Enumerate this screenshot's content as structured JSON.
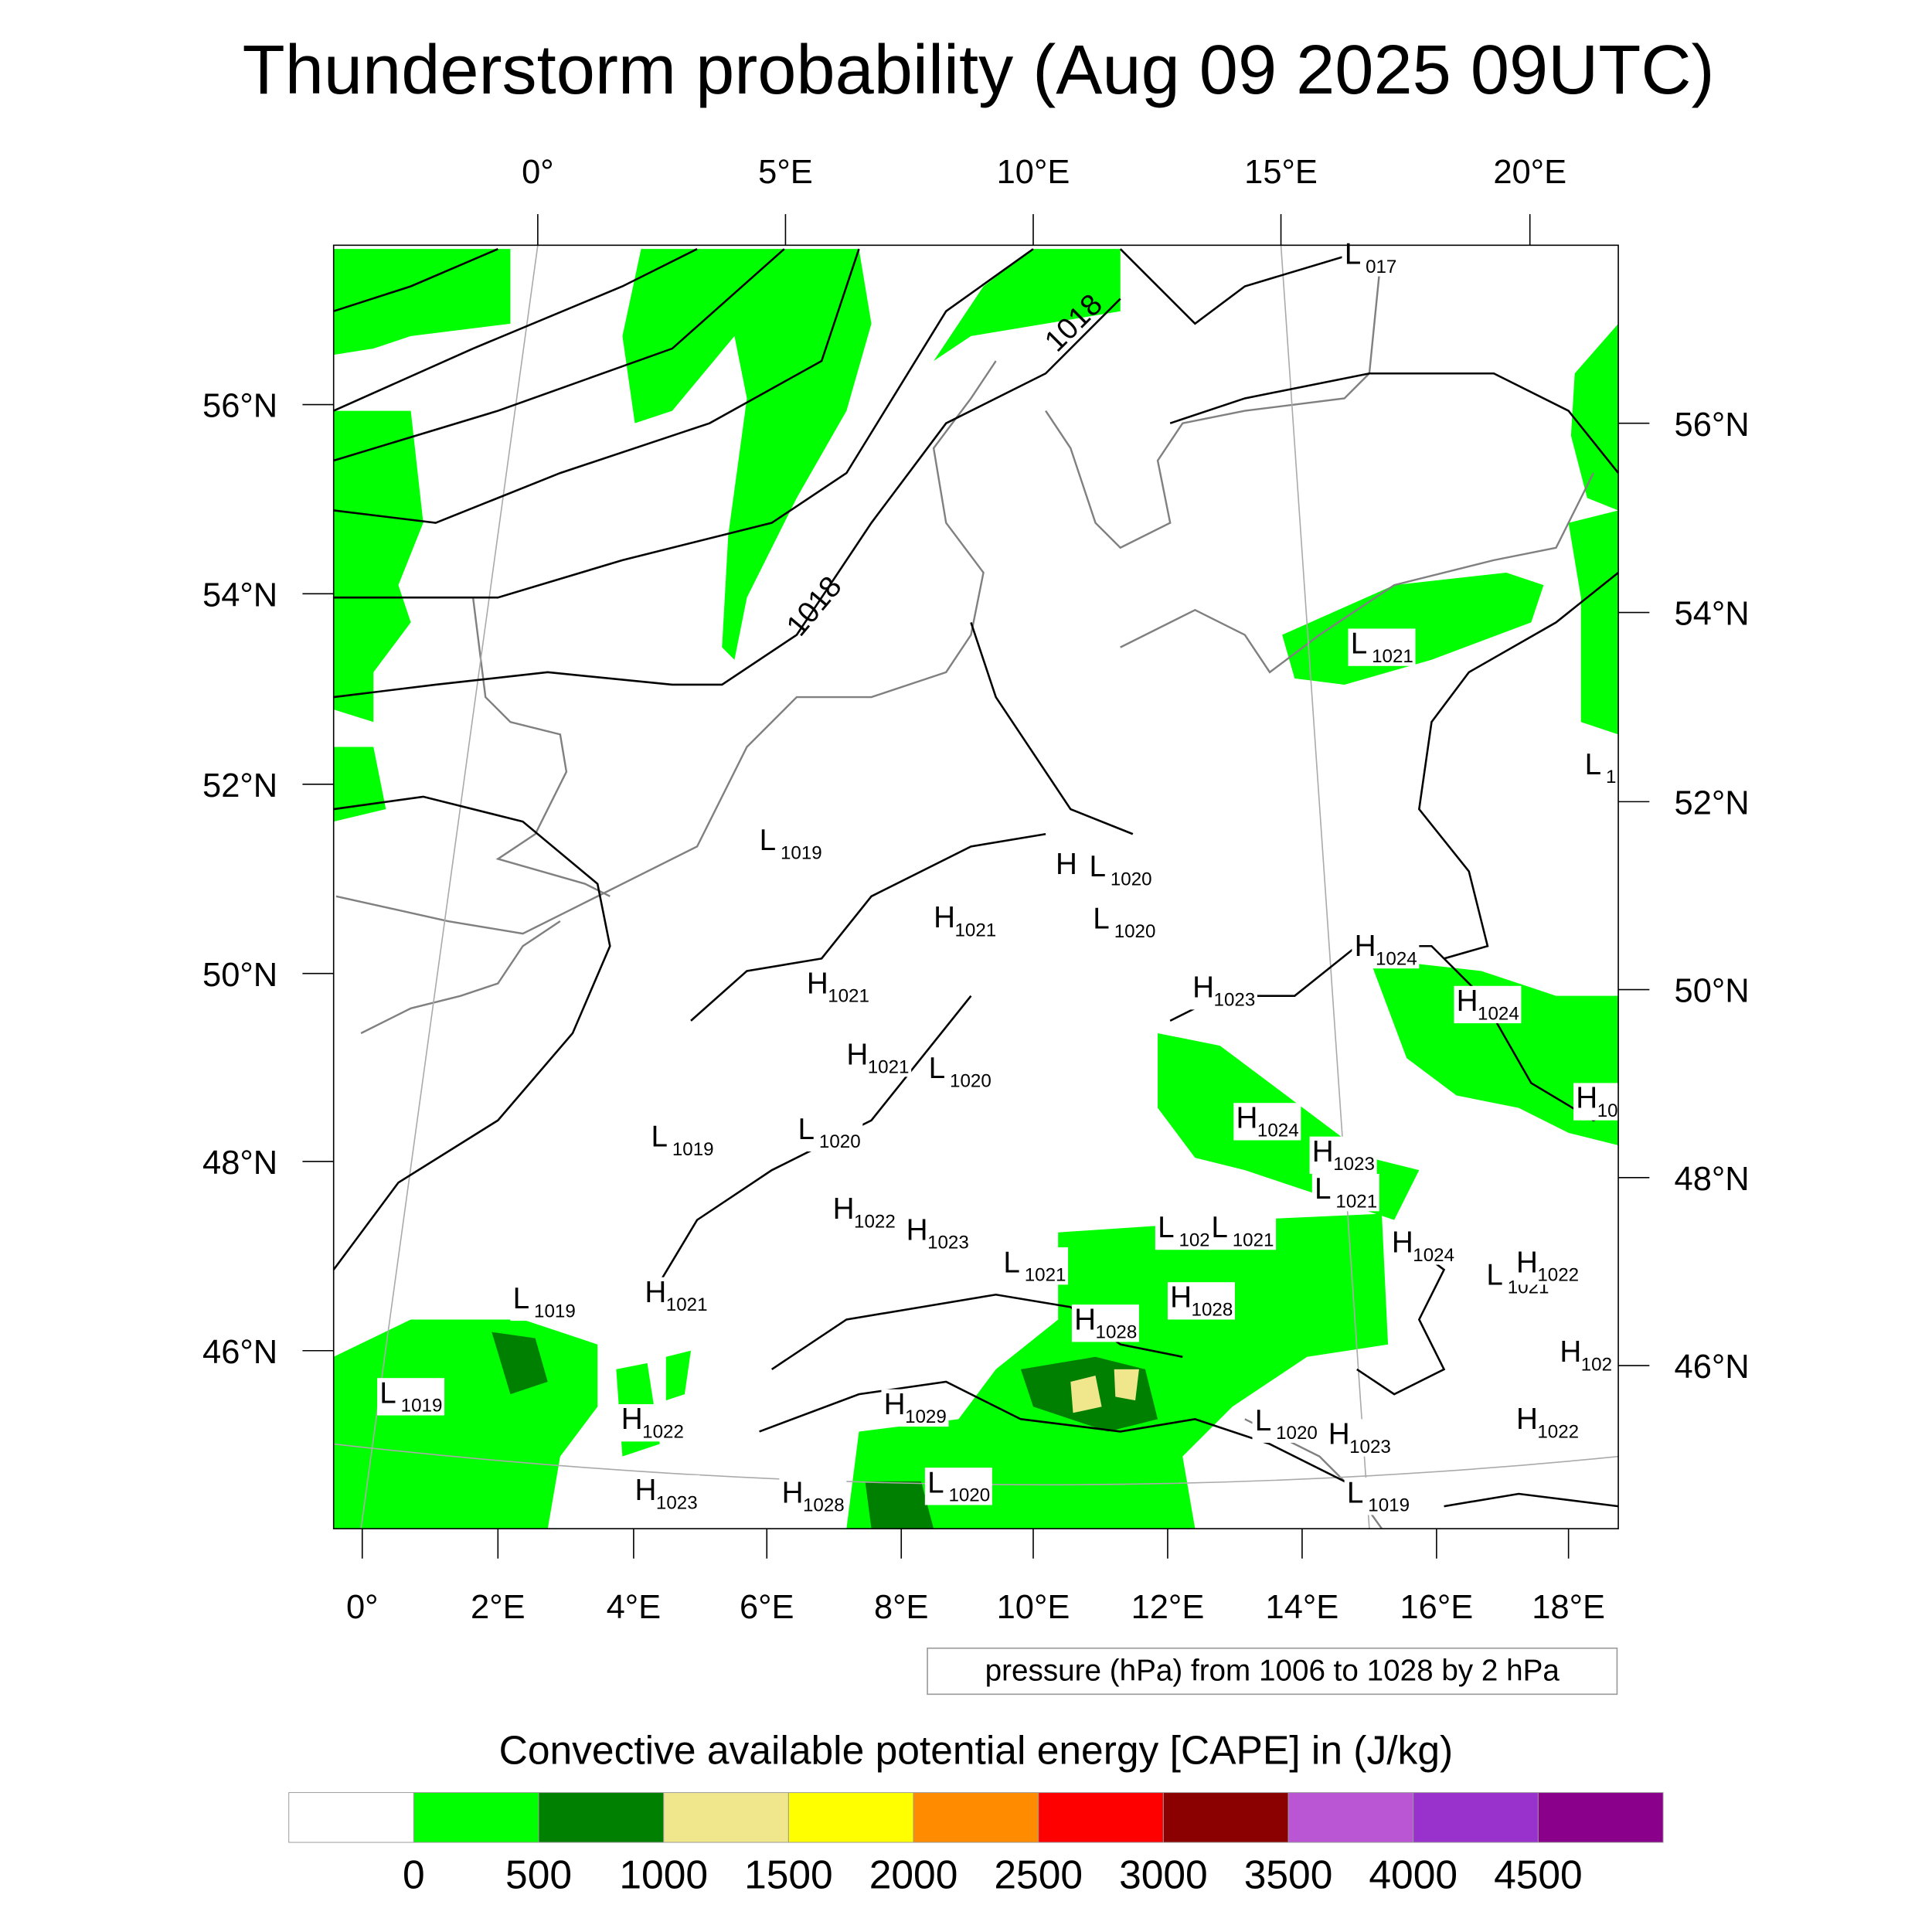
{
  "title": "Thunderstorm probability (Aug 09 2025 09UTC)",
  "chart_data": {
    "type": "heatmap",
    "title": "Thunderstorm probability (Aug 09 2025 09UTC)",
    "top_lon_labels": [
      "0°",
      "5°E",
      "10°E",
      "15°E",
      "20°E"
    ],
    "bottom_lon_labels": [
      "0°",
      "2°E",
      "4°E",
      "6°E",
      "8°E",
      "10°E",
      "12°E",
      "14°E",
      "16°E",
      "18°E"
    ],
    "left_lat_labels": [
      "56°N",
      "54°N",
      "52°N",
      "50°N",
      "48°N",
      "46°N"
    ],
    "right_lat_labels": [
      "56°N",
      "54°N",
      "52°N",
      "50°N",
      "48°N",
      "46°N"
    ],
    "contour_info": "pressure (hPa) from 1006 to 1028 by 2 hPa",
    "contour_labels": [
      "1018",
      "1018"
    ],
    "pressure_centers": [
      {
        "type": "L",
        "value": "017"
      },
      {
        "type": "L",
        "value": "1021"
      },
      {
        "type": "L",
        "value": "1"
      },
      {
        "type": "L",
        "value": "1019"
      },
      {
        "type": "H",
        "value": ""
      },
      {
        "type": "L",
        "value": "1020"
      },
      {
        "type": "H",
        "value": "1021"
      },
      {
        "type": "L",
        "value": "1020"
      },
      {
        "type": "H",
        "value": "1024"
      },
      {
        "type": "H",
        "value": "1021"
      },
      {
        "type": "H",
        "value": "1023"
      },
      {
        "type": "H",
        "value": "1024"
      },
      {
        "type": "H",
        "value": "1021"
      },
      {
        "type": "L",
        "value": "1020"
      },
      {
        "type": "H",
        "value": "10"
      },
      {
        "type": "L",
        "value": "1019"
      },
      {
        "type": "L",
        "value": "1020"
      },
      {
        "type": "H",
        "value": "1024"
      },
      {
        "type": "H",
        "value": "1023"
      },
      {
        "type": "L",
        "value": "1021"
      },
      {
        "type": "H",
        "value": "1022"
      },
      {
        "type": "H",
        "value": "1023"
      },
      {
        "type": "L",
        "value": "102"
      },
      {
        "type": "L",
        "value": "1021"
      },
      {
        "type": "H",
        "value": "1024"
      },
      {
        "type": "L",
        "value": "1021"
      },
      {
        "type": "H",
        "value": "1028"
      },
      {
        "type": "L",
        "value": "1021"
      },
      {
        "type": "H",
        "value": "1022"
      },
      {
        "type": "L",
        "value": "1019"
      },
      {
        "type": "H",
        "value": "1021"
      },
      {
        "type": "H",
        "value": "1028"
      },
      {
        "type": "H",
        "value": "102"
      },
      {
        "type": "L",
        "value": "1019"
      },
      {
        "type": "H",
        "value": "1022"
      },
      {
        "type": "H",
        "value": "1029"
      },
      {
        "type": "L",
        "value": "1020"
      },
      {
        "type": "H",
        "value": "1023"
      },
      {
        "type": "H",
        "value": "1022"
      },
      {
        "type": "H",
        "value": "1023"
      },
      {
        "type": "H",
        "value": "1028"
      },
      {
        "type": "L",
        "value": "1020"
      },
      {
        "type": "L",
        "value": "1019"
      }
    ],
    "colorbar": {
      "title": "Convective available potential energy [CAPE] in (J/kg)",
      "levels": [
        "0",
        "500",
        "1000",
        "1500",
        "2000",
        "2500",
        "3000",
        "3500",
        "4000",
        "4500"
      ],
      "colors": [
        "#ffffff",
        "#00ff00",
        "#008000",
        "#f0e68c",
        "#ffff00",
        "#ff8c00",
        "#ff0000",
        "#8b0000",
        "#ba55d3",
        "#9932cc",
        "#8b008b"
      ]
    }
  }
}
